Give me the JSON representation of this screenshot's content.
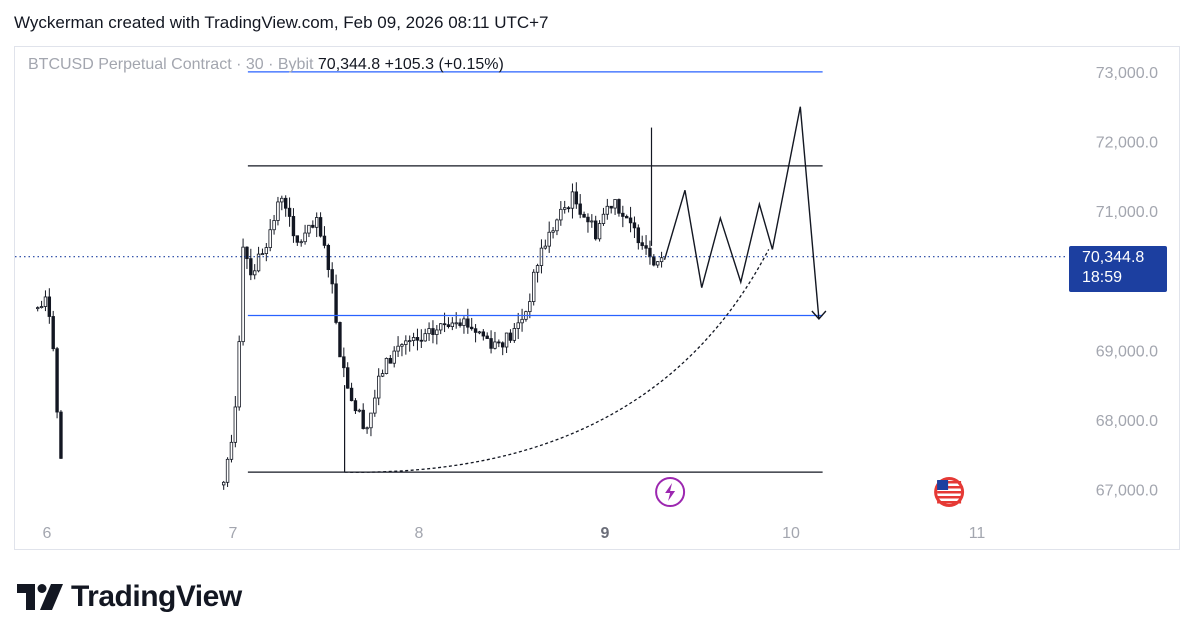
{
  "header": {
    "text": "Wyckerman created with TradingView.com, Feb 09, 2026 08:11 UTC+7"
  },
  "legend": {
    "symbol": "BTCUSD Perpetual Contract · 30 · Bybit",
    "price": "70,344.8",
    "change": "+105.3 (+0.15%)"
  },
  "price_tag": {
    "price": "70,344.8",
    "countdown": "18:59"
  },
  "footer": {
    "brand": "TradingView"
  },
  "icons": {
    "event_icon": "lightning-icon",
    "flag_icon": "us-flag-icon"
  },
  "colors": {
    "accent_line": "#2962ff",
    "price_tag_bg": "#1c3fa0",
    "candle_bull": "#ffffff",
    "candle_bear": "#131722",
    "event_purple": "#9c27b0",
    "flag_red": "#e53935"
  },
  "chart_data": {
    "type": "candlestick",
    "ylim": [
      66700,
      73500
    ],
    "xlim": [
      5.95,
      11.7
    ],
    "y_ticks": [
      "67,000.0",
      "68,000.0",
      "69,000.0",
      "70,000.0",
      "71,000.0",
      "72,000.0",
      "73,000.0"
    ],
    "y_tick_values": [
      67000,
      68000,
      69000,
      70000,
      71000,
      72000,
      73000
    ],
    "x_ticks": [
      "6",
      "7",
      "8",
      "9",
      "10",
      "11"
    ],
    "x_tick_values": [
      6,
      7,
      8,
      9,
      10,
      11
    ],
    "grid": false,
    "current_price": 70344.8,
    "path_points": [
      [
        5.95,
        69600
      ],
      [
        6.0,
        69700
      ],
      [
        6.03,
        69300
      ],
      [
        6.05,
        68200
      ],
      [
        6.08,
        67300
      ],
      [
        6.95,
        67000
      ],
      [
        7.0,
        67800
      ],
      [
        7.03,
        68900
      ],
      [
        7.05,
        70600
      ],
      [
        7.1,
        70100
      ],
      [
        7.2,
        70700
      ],
      [
        7.27,
        71300
      ],
      [
        7.33,
        70500
      ],
      [
        7.45,
        70800
      ],
      [
        7.52,
        70200
      ],
      [
        7.58,
        68900
      ],
      [
        7.65,
        68200
      ],
      [
        7.72,
        67900
      ],
      [
        7.8,
        68700
      ],
      [
        7.9,
        69100
      ],
      [
        8.0,
        69100
      ],
      [
        8.1,
        69300
      ],
      [
        8.2,
        69500
      ],
      [
        8.3,
        69300
      ],
      [
        8.4,
        69100
      ],
      [
        8.5,
        69200
      ],
      [
        8.58,
        69600
      ],
      [
        8.65,
        70400
      ],
      [
        8.75,
        70900
      ],
      [
        8.82,
        71200
      ],
      [
        8.88,
        71000
      ],
      [
        8.95,
        70700
      ],
      [
        9.0,
        71000
      ],
      [
        9.05,
        71200
      ],
      [
        9.12,
        70800
      ],
      [
        9.2,
        70600
      ],
      [
        9.27,
        70300
      ],
      [
        9.32,
        70344.8
      ]
    ],
    "resistance": 71650,
    "support": 67250,
    "mid_line": 69500,
    "top_line": 73000,
    "wick_high": 72200,
    "forecast_zigzag": [
      [
        9.32,
        70300
      ],
      [
        9.43,
        71300
      ],
      [
        9.52,
        69900
      ],
      [
        9.62,
        70900
      ],
      [
        9.73,
        69980
      ],
      [
        9.83,
        71100
      ],
      [
        9.9,
        70450
      ],
      [
        10.05,
        72500
      ],
      [
        10.15,
        69450
      ]
    ],
    "curve": {
      "start": [
        7.6,
        67250
      ],
      "end": [
        9.88,
        70450
      ]
    },
    "event_markers": [
      {
        "name": "lightning-icon",
        "x": 9.35
      },
      {
        "name": "us-flag-icon",
        "x": 10.85
      }
    ]
  }
}
